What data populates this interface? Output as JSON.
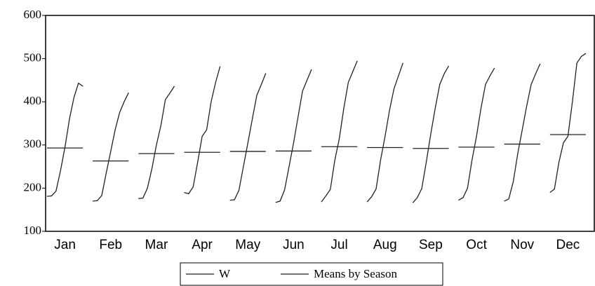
{
  "chart_data": {
    "type": "seasonal",
    "categories": [
      "Jan",
      "Feb",
      "Mar",
      "Apr",
      "May",
      "Jun",
      "Jul",
      "Aug",
      "Sep",
      "Oct",
      "Nov",
      "Dec"
    ],
    "series": [
      {
        "name": "W",
        "color": "#222222",
        "values": [
          [
            181,
            182,
            193,
            240,
            295,
            360,
            410,
            443,
            436
          ],
          [
            170,
            171,
            183,
            235,
            285,
            335,
            375,
            400,
            421
          ],
          [
            176,
            177,
            200,
            245,
            300,
            345,
            405,
            420,
            436
          ],
          [
            190,
            187,
            203,
            260,
            320,
            335,
            400,
            445,
            482
          ],
          [
            172,
            173,
            195,
            250,
            305,
            360,
            415,
            440,
            466
          ],
          [
            167,
            170,
            196,
            250,
            305,
            365,
            425,
            450,
            475
          ],
          [
            168,
            182,
            197,
            265,
            315,
            385,
            445,
            470,
            495
          ],
          [
            168,
            180,
            198,
            265,
            320,
            380,
            430,
            460,
            490
          ],
          [
            166,
            178,
            199,
            260,
            325,
            385,
            440,
            465,
            483
          ],
          [
            172,
            178,
            200,
            265,
            320,
            385,
            440,
            460,
            478
          ],
          [
            170,
            175,
            215,
            280,
            335,
            390,
            440,
            465,
            488
          ],
          [
            190,
            198,
            260,
            305,
            320,
            400,
            490,
            505,
            512
          ]
        ]
      },
      {
        "name": "Means by Season",
        "color": "#222222",
        "values": [
          293,
          263,
          280,
          283,
          285,
          286,
          296,
          294,
          292,
          295,
          302,
          324
        ]
      }
    ],
    "ylim": [
      100,
      600
    ],
    "yticks": [
      100,
      200,
      300,
      400,
      500,
      600
    ]
  }
}
